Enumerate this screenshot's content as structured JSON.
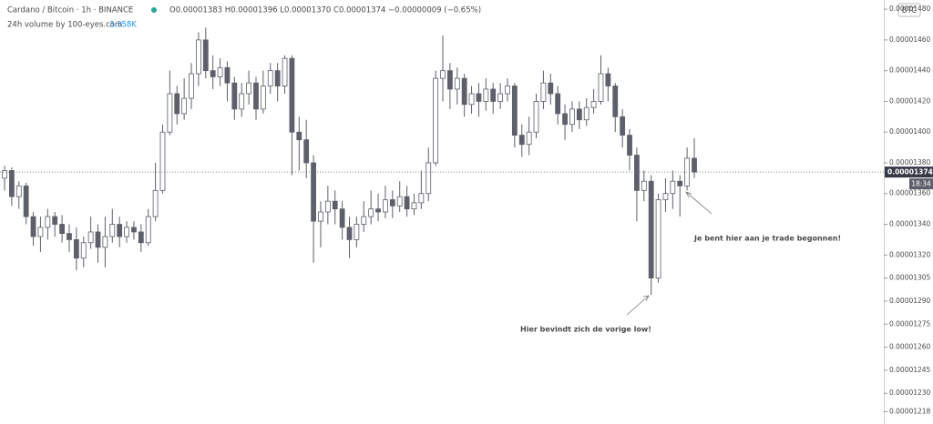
{
  "chart_data": {
    "type": "candlestick",
    "header": {
      "symbol": "Cardano / Bitcoin · 1h · BINANCE",
      "ohlc": "O0.00001383 H0.00001396 L0.00001370 C0.00001374 −0.00000009 (−0.65%)",
      "volume_label": "24h volume by 100-eyes.com",
      "volume_value": "3.358K"
    },
    "currency": "BTC",
    "last_price_label": "0.00001374",
    "countdown": "18:34",
    "annotations": [
      "Je bent hier aan je trade begonnen!",
      "Hier bevindt zich de vorige low!"
    ],
    "up_color": "#ffffff",
    "down_color": "#5d606b",
    "wick_color": "#5d606b",
    "open": [
      1.37e-05,
      1.375e-05,
      1.358e-05,
      1.365e-05,
      1.345e-05,
      1.332e-05,
      1.338e-05,
      1.345e-05,
      1.34e-05,
      1.334e-05,
      1.33e-05,
      1.318e-05,
      1.328e-05,
      1.335e-05,
      1.325e-05,
      1.332e-05,
      1.34e-05,
      1.332e-05,
      1.338e-05,
      1.335e-05,
      1.328e-05,
      1.345e-05,
      1.362e-05,
      1.4e-05,
      1.425e-05,
      1.412e-05,
      1.422e-05,
      1.438e-05,
      1.46e-05,
      1.44e-05,
      1.436e-05,
      1.442e-05,
      1.432e-05,
      1.415e-05,
      1.425e-05,
      1.432e-05,
      1.415e-05,
      1.43e-05,
      1.44e-05,
      1.43e-05,
      1.448e-05,
      1.4e-05,
      1.395e-05,
      1.38e-05,
      1.342e-05,
      1.348e-05,
      1.355e-05,
      1.35e-05,
      1.338e-05,
      1.33e-05,
      1.34e-05,
      1.345e-05,
      1.35e-05,
      1.348e-05,
      1.356e-05,
      1.352e-05,
      1.358e-05,
      1.35e-05,
      1.354e-05,
      1.36e-05,
      1.38e-05,
      1.435e-05,
      1.44e-05,
      1.428e-05,
      1.435e-05,
      1.418e-05,
      1.425e-05,
      1.42e-05,
      1.428e-05,
      1.42e-05,
      1.425e-05,
      1.43e-05,
      1.398e-05,
      1.392e-05,
      1.4e-05,
      1.42e-05,
      1.432e-05,
      1.425e-05,
      1.412e-05,
      1.405e-05,
      1.415e-05,
      1.408e-05,
      1.416e-05,
      1.42e-05,
      1.438e-05,
      1.43e-05,
      1.41e-05,
      1.398e-05,
      1.385e-05,
      1.362e-05,
      1.368e-05,
      1.305e-05,
      1.356e-05,
      1.36e-05,
      1.368e-05,
      1.365e-05,
      1.383e-05
    ],
    "close": [
      1.375e-05,
      1.358e-05,
      1.365e-05,
      1.345e-05,
      1.332e-05,
      1.338e-05,
      1.345e-05,
      1.34e-05,
      1.334e-05,
      1.33e-05,
      1.318e-05,
      1.328e-05,
      1.335e-05,
      1.325e-05,
      1.332e-05,
      1.34e-05,
      1.332e-05,
      1.338e-05,
      1.335e-05,
      1.328e-05,
      1.345e-05,
      1.362e-05,
      1.4e-05,
      1.425e-05,
      1.412e-05,
      1.422e-05,
      1.438e-05,
      1.46e-05,
      1.44e-05,
      1.436e-05,
      1.442e-05,
      1.432e-05,
      1.415e-05,
      1.425e-05,
      1.432e-05,
      1.415e-05,
      1.43e-05,
      1.44e-05,
      1.43e-05,
      1.448e-05,
      1.4e-05,
      1.395e-05,
      1.38e-05,
      1.342e-05,
      1.348e-05,
      1.355e-05,
      1.35e-05,
      1.338e-05,
      1.33e-05,
      1.34e-05,
      1.345e-05,
      1.35e-05,
      1.348e-05,
      1.356e-05,
      1.352e-05,
      1.358e-05,
      1.35e-05,
      1.354e-05,
      1.36e-05,
      1.38e-05,
      1.435e-05,
      1.44e-05,
      1.428e-05,
      1.435e-05,
      1.418e-05,
      1.425e-05,
      1.42e-05,
      1.428e-05,
      1.42e-05,
      1.425e-05,
      1.43e-05,
      1.398e-05,
      1.392e-05,
      1.4e-05,
      1.42e-05,
      1.432e-05,
      1.425e-05,
      1.412e-05,
      1.405e-05,
      1.415e-05,
      1.408e-05,
      1.416e-05,
      1.42e-05,
      1.438e-05,
      1.43e-05,
      1.41e-05,
      1.398e-05,
      1.385e-05,
      1.362e-05,
      1.368e-05,
      1.305e-05,
      1.356e-05,
      1.36e-05,
      1.368e-05,
      1.365e-05,
      1.383e-05,
      1.374e-05
    ],
    "high": [
      1.378e-05,
      1.377e-05,
      1.368e-05,
      1.367e-05,
      1.348e-05,
      1.345e-05,
      1.35e-05,
      1.348e-05,
      1.346e-05,
      1.34e-05,
      1.338e-05,
      1.332e-05,
      1.345e-05,
      1.34e-05,
      1.345e-05,
      1.35e-05,
      1.345e-05,
      1.342e-05,
      1.342e-05,
      1.34e-05,
      1.35e-05,
      1.38e-05,
      1.405e-05,
      1.44e-05,
      1.43e-05,
      1.435e-05,
      1.445e-05,
      1.465e-05,
      1.468e-05,
      1.45e-05,
      1.448e-05,
      1.446e-05,
      1.436e-05,
      1.432e-05,
      1.44e-05,
      1.436e-05,
      1.44e-05,
      1.445e-05,
      1.445e-05,
      1.45e-05,
      1.45e-05,
      1.41e-05,
      1.408e-05,
      1.385e-05,
      1.355e-05,
      1.365e-05,
      1.362e-05,
      1.355e-05,
      1.345e-05,
      1.345e-05,
      1.355e-05,
      1.362e-05,
      1.36e-05,
      1.365e-05,
      1.362e-05,
      1.368e-05,
      1.365e-05,
      1.36e-05,
      1.375e-05,
      1.39e-05,
      1.44e-05,
      1.463e-05,
      1.445e-05,
      1.442e-05,
      1.438e-05,
      1.43e-05,
      1.432e-05,
      1.435e-05,
      1.432e-05,
      1.432e-05,
      1.435e-05,
      1.432e-05,
      1.405e-05,
      1.41e-05,
      1.425e-05,
      1.44e-05,
      1.438e-05,
      1.43e-05,
      1.418e-05,
      1.42e-05,
      1.42e-05,
      1.422e-05,
      1.428e-05,
      1.45e-05,
      1.442e-05,
      1.432e-05,
      1.415e-05,
      1.402e-05,
      1.39e-05,
      1.375e-05,
      1.372e-05,
      1.36e-05,
      1.37e-05,
      1.375e-05,
      1.372e-05,
      1.39e-05,
      1.396e-05
    ],
    "low": [
      1.362e-05,
      1.352e-05,
      1.35e-05,
      1.34e-05,
      1.326e-05,
      1.322e-05,
      1.33e-05,
      1.332e-05,
      1.328e-05,
      1.322e-05,
      1.31e-05,
      1.312e-05,
      1.324e-05,
      1.315e-05,
      1.312e-05,
      1.328e-05,
      1.325e-05,
      1.328e-05,
      1.33e-05,
      1.322e-05,
      1.326e-05,
      1.342e-05,
      1.36e-05,
      1.398e-05,
      1.405e-05,
      1.408e-05,
      1.415e-05,
      1.43e-05,
      1.435e-05,
      1.428e-05,
      1.43e-05,
      1.42e-05,
      1.408e-05,
      1.41e-05,
      1.418e-05,
      1.408e-05,
      1.412e-05,
      1.425e-05,
      1.42e-05,
      1.425e-05,
      1.372e-05,
      1.375e-05,
      1.37e-05,
      1.315e-05,
      1.325e-05,
      1.34e-05,
      1.34e-05,
      1.33e-05,
      1.318e-05,
      1.325e-05,
      1.335e-05,
      1.34e-05,
      1.342e-05,
      1.344e-05,
      1.344e-05,
      1.348e-05,
      1.345e-05,
      1.346e-05,
      1.35e-05,
      1.355e-05,
      1.378e-05,
      1.42e-05,
      1.415e-05,
      1.418e-05,
      1.41e-05,
      1.412e-05,
      1.41e-05,
      1.414e-05,
      1.412e-05,
      1.415e-05,
      1.42e-05,
      1.39e-05,
      1.384e-05,
      1.385e-05,
      1.396e-05,
      1.415e-05,
      1.418e-05,
      1.405e-05,
      1.395e-05,
      1.4e-05,
      1.402e-05,
      1.404e-05,
      1.412e-05,
      1.418e-05,
      1.42e-05,
      1.4e-05,
      1.39e-05,
      1.375e-05,
      1.342e-05,
      1.355e-05,
      1.294e-05,
      1.302e-05,
      1.348e-05,
      1.35e-05,
      1.345e-05,
      1.362e-05,
      1.37e-05
    ],
    "ylim": [
      1.21e-05,
      1.486e-05
    ],
    "yticks": [
      {
        "value": 1.48e-05,
        "label": "0.00001480"
      },
      {
        "value": 1.46e-05,
        "label": "0.00001460"
      },
      {
        "value": 1.44e-05,
        "label": "0.00001440"
      },
      {
        "value": 1.42e-05,
        "label": "0.00001420"
      },
      {
        "value": 1.4e-05,
        "label": "0.00001400"
      },
      {
        "value": 1.38e-05,
        "label": "0.00001380"
      },
      {
        "value": 1.36e-05,
        "label": "0.00001360"
      },
      {
        "value": 1.34e-05,
        "label": "0.00001340"
      },
      {
        "value": 1.32e-05,
        "label": "0.00001320"
      },
      {
        "value": 1.305e-05,
        "label": "0.00001305"
      },
      {
        "value": 1.29e-05,
        "label": "0.00001290"
      },
      {
        "value": 1.275e-05,
        "label": "0.00001275"
      },
      {
        "value": 1.26e-05,
        "label": "0.00001260"
      },
      {
        "value": 1.245e-05,
        "label": "0.00001245"
      },
      {
        "value": 1.23e-05,
        "label": "0.00001230"
      },
      {
        "value": 1.218e-05,
        "label": "0.00001218"
      }
    ]
  }
}
